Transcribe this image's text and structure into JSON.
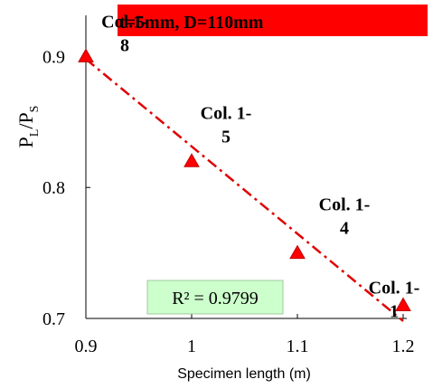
{
  "chart_data": {
    "type": "scatter",
    "banner": "t=5mm, D=110mm",
    "xlabel": "Specimen length (m)",
    "ylabel_main": "P",
    "ylabel_sub1": "L",
    "ylabel_sep": "/P",
    "ylabel_sub2": "S",
    "xlim": [
      0.9,
      1.2
    ],
    "ylim": [
      0.7,
      0.93
    ],
    "xticks": [
      {
        "value": 0.9,
        "label": "0.9"
      },
      {
        "value": 1.0,
        "label": "1"
      },
      {
        "value": 1.1,
        "label": "1.1"
      },
      {
        "value": 1.2,
        "label": "1.2"
      }
    ],
    "yticks": [
      {
        "value": 0.7,
        "label": "0.7"
      },
      {
        "value": 0.8,
        "label": "0.8"
      },
      {
        "value": 0.9,
        "label": "0.9"
      }
    ],
    "points": [
      {
        "x": 0.9,
        "y": 0.9,
        "label_lines": [
          "Col.1-",
          "8"
        ]
      },
      {
        "x": 1.0,
        "y": 0.82,
        "label_lines": [
          "Col. 1-",
          "5"
        ]
      },
      {
        "x": 1.1,
        "y": 0.75,
        "label_lines": [
          "Col. 1-",
          "4"
        ]
      },
      {
        "x": 1.2,
        "y": 0.71,
        "label_lines": [
          "Col. 1-",
          "1"
        ]
      }
    ],
    "trendline": {
      "x1": 0.9,
      "y1": 0.898,
      "x2": 1.2,
      "y2": 0.698
    },
    "r2_label": "R² = 0.9799",
    "colors": {
      "marker": "#ff0000",
      "marker_edge": "#c00000",
      "trend": "#e00000",
      "banner": "#ff0000",
      "r2_box": "#ccffcc"
    }
  }
}
